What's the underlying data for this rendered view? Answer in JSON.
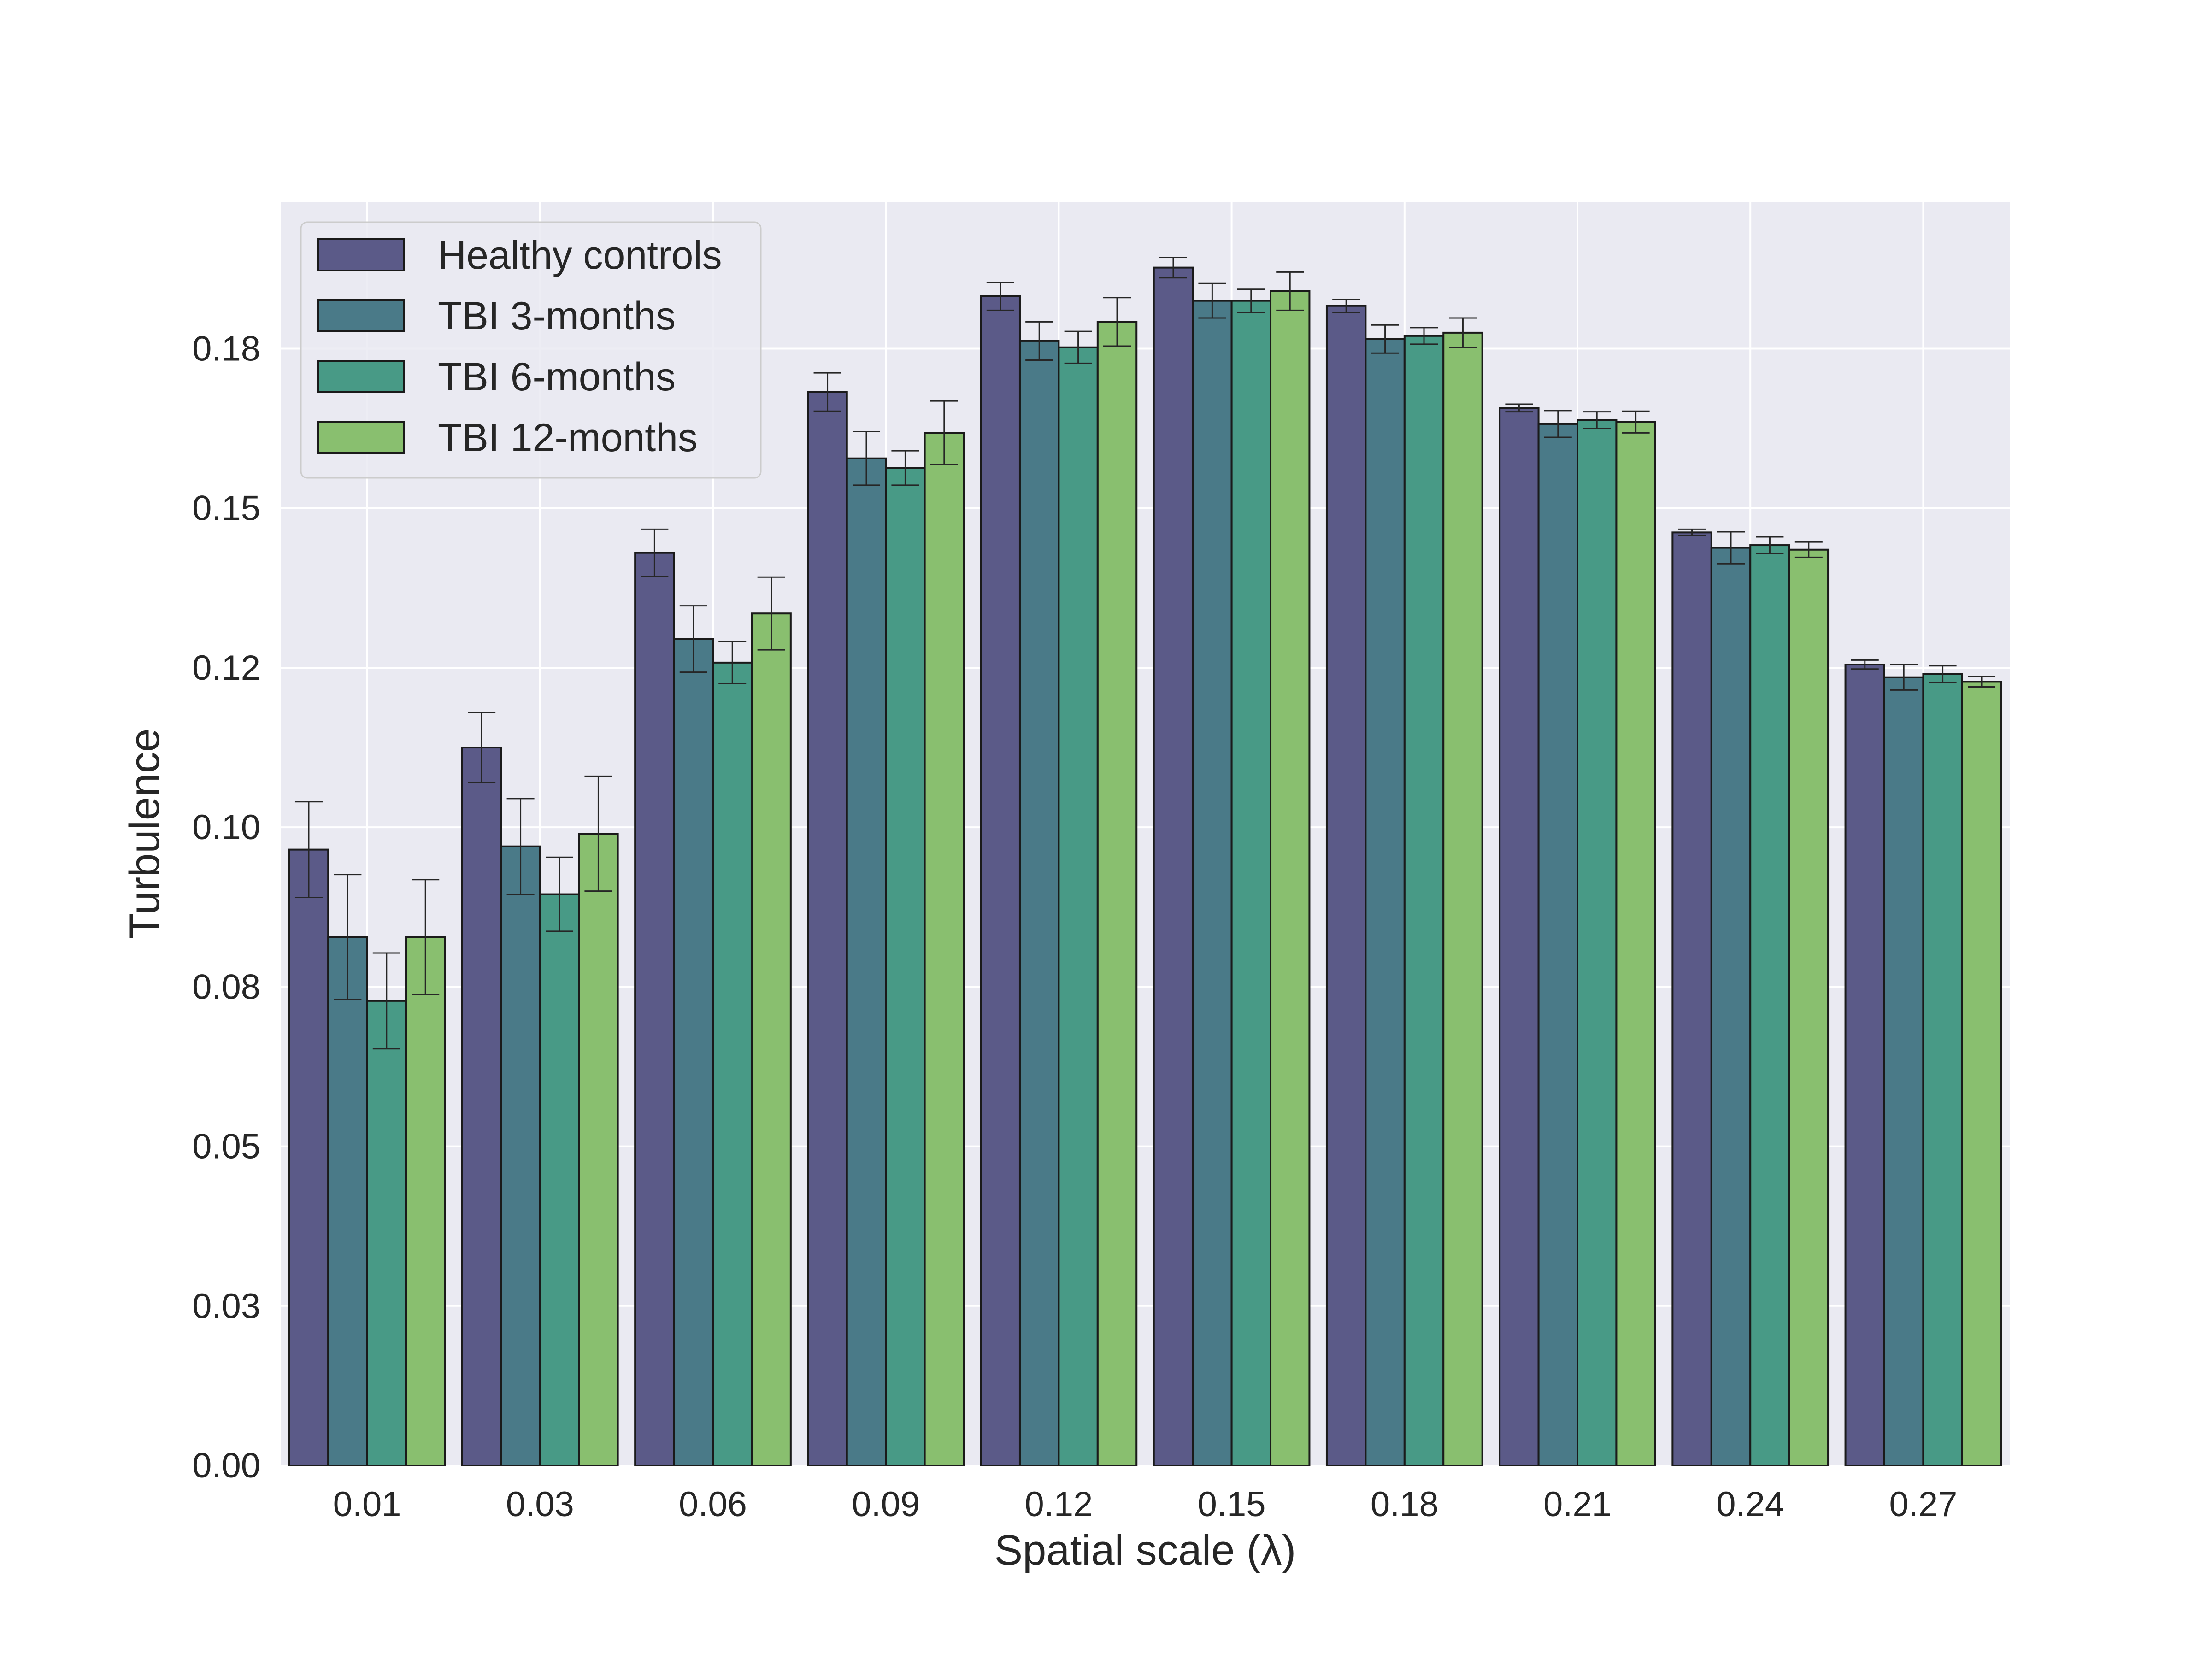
{
  "chart_data": {
    "type": "bar",
    "xlabel": "Spatial scale (λ)",
    "ylabel": "Turbulence",
    "ylim": [
      0,
      0.198
    ],
    "yticks": [
      0.0,
      0.025,
      0.05,
      0.075,
      0.1,
      0.125,
      0.15,
      0.175
    ],
    "ytick_labels": [
      "0.00",
      "0.03",
      "0.05",
      "0.08",
      "0.10",
      "0.12",
      "0.15",
      "0.18"
    ],
    "categories": [
      "0.01",
      "0.03",
      "0.06",
      "0.09",
      "0.12",
      "0.15",
      "0.18",
      "0.21",
      "0.24",
      "0.27"
    ],
    "grid": true,
    "legend_position": "top-left",
    "series": [
      {
        "name": "Healthy controls",
        "color": "#5b5a88",
        "values": [
          0.0965,
          0.1125,
          0.143,
          0.1682,
          0.1832,
          0.1877,
          0.1817,
          0.1657,
          0.1462,
          0.1255
        ],
        "errors": [
          0.0075,
          0.0055,
          0.0037,
          0.003,
          0.0022,
          0.0016,
          0.001,
          0.0006,
          0.0005,
          0.0007
        ]
      },
      {
        "name": "TBI 3-months",
        "color": "#4a7a88",
        "values": [
          0.0828,
          0.097,
          0.1295,
          0.1578,
          0.1762,
          0.1825,
          0.1765,
          0.1632,
          0.1438,
          0.1235
        ],
        "errors": [
          0.0098,
          0.0075,
          0.0052,
          0.0042,
          0.003,
          0.0027,
          0.0022,
          0.0021,
          0.0025,
          0.002
        ]
      },
      {
        "name": "TBI 6-months",
        "color": "#489a86",
        "values": [
          0.0728,
          0.0895,
          0.1258,
          0.1563,
          0.1752,
          0.1825,
          0.177,
          0.1638,
          0.1442,
          0.124
        ],
        "errors": [
          0.0075,
          0.0058,
          0.0033,
          0.0027,
          0.0025,
          0.0018,
          0.0013,
          0.0013,
          0.0013,
          0.0013
        ]
      },
      {
        "name": "TBI 12-months",
        "color": "#89bf6f",
        "values": [
          0.0828,
          0.099,
          0.1335,
          0.1618,
          0.1792,
          0.184,
          0.1775,
          0.1635,
          0.1435,
          0.1228
        ],
        "errors": [
          0.009,
          0.009,
          0.0057,
          0.005,
          0.0038,
          0.003,
          0.0023,
          0.0017,
          0.0012,
          0.0008
        ]
      }
    ]
  }
}
